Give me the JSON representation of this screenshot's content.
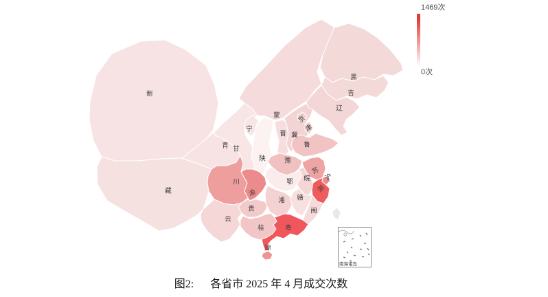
{
  "figure": {
    "caption_prefix": "图2:",
    "caption_text": "各省市 2025 年 4 月成交次数"
  },
  "legend": {
    "max_label": "1469次",
    "min_label": "0次",
    "color_top": "#e23c39",
    "color_bottom": "#ffffff"
  },
  "inset": {
    "label": "南海诸岛"
  },
  "chart_data": {
    "type": "heatmap",
    "subtype": "china-choropleth",
    "title": "各省市 2025 年 4 月成交次数",
    "unit": "次",
    "value_range": [
      0,
      1469
    ],
    "values_estimated_from_color": true,
    "provinces": [
      {
        "id": "xinjiang",
        "label": "新",
        "color": "#f7e3e3",
        "value_est": 130
      },
      {
        "id": "xizang",
        "label": "藏",
        "color": "#f6e1e1",
        "value_est": 150
      },
      {
        "id": "qinghai",
        "label": "青",
        "color": "#f7e3e3",
        "value_est": 150
      },
      {
        "id": "gansu",
        "label": "甘",
        "color": "#f8e6e6",
        "value_est": 130
      },
      {
        "id": "neimenggu",
        "label": "蒙",
        "color": "#f5dbdb",
        "value_est": 200
      },
      {
        "id": "ningxia",
        "label": "宁",
        "color": "#f8e6e6",
        "value_est": 130
      },
      {
        "id": "shaanxi",
        "label": "陕",
        "color": "#fcf2f2",
        "value_est": 40
      },
      {
        "id": "shanxi",
        "label": "晋",
        "color": "#f6dede",
        "value_est": 180
      },
      {
        "id": "hebei",
        "label": "冀",
        "color": "#f3d4d4",
        "value_est": 240
      },
      {
        "id": "heilongjiang",
        "label": "黑",
        "color": "#f4d9d9",
        "value_est": 210
      },
      {
        "id": "jilin",
        "label": "吉",
        "color": "#f4d9d9",
        "value_est": 210
      },
      {
        "id": "liaoning",
        "label": "辽",
        "color": "#f3d6d6",
        "value_est": 230
      },
      {
        "id": "shandong",
        "label": "鲁",
        "color": "#f1c3c3",
        "value_est": 360
      },
      {
        "id": "henan",
        "label": "豫",
        "color": "#f1c0c0",
        "value_est": 380
      },
      {
        "id": "jiangsu",
        "label": "苏",
        "color": "#eea4a4",
        "value_est": 520
      },
      {
        "id": "anhui",
        "label": "皖",
        "color": "#f5d6d6",
        "value_est": 230
      },
      {
        "id": "hubei",
        "label": "鄂",
        "color": "#fbecec",
        "value_est": 80
      },
      {
        "id": "sichuan",
        "label": "川",
        "color": "#ef9e9e",
        "value_est": 580
      },
      {
        "id": "chongqing",
        "label": "渝",
        "color": "#ec8b8b",
        "value_est": 680
      },
      {
        "id": "guizhou",
        "label": "贵",
        "color": "#f3caca",
        "value_est": 300
      },
      {
        "id": "yunnan",
        "label": "云",
        "color": "#f5d7d7",
        "value_est": 230
      },
      {
        "id": "hunan",
        "label": "湘",
        "color": "#f4d2d2",
        "value_est": 240
      },
      {
        "id": "jiangxi",
        "label": "赣",
        "color": "#f8e0e0",
        "value_est": 170
      },
      {
        "id": "zhejiang",
        "label": "浙",
        "color": "#ef5c5c",
        "value_est": 1400
      },
      {
        "id": "shanghai",
        "label": "沪",
        "color": "#ea8f8f",
        "value_est": 650
      },
      {
        "id": "fujian",
        "label": "闽",
        "color": "#f6dada",
        "value_est": 200
      },
      {
        "id": "guangxi",
        "label": "桂",
        "color": "#f2c6c6",
        "value_est": 330
      },
      {
        "id": "guangdong",
        "label": "粤",
        "color": "#f0575c",
        "value_est": 1469
      },
      {
        "id": "hainan",
        "label": "琼",
        "color": "#ed9494",
        "value_est": 600
      },
      {
        "id": "taiwan",
        "label": "",
        "color": "#e9e9e9",
        "value_est": null
      },
      {
        "id": "beijing",
        "label": "京",
        "color": "#f2d0d0",
        "value_est": 250
      },
      {
        "id": "tianjin",
        "label": "津",
        "color": "#f2d0d0",
        "value_est": 250
      }
    ]
  }
}
